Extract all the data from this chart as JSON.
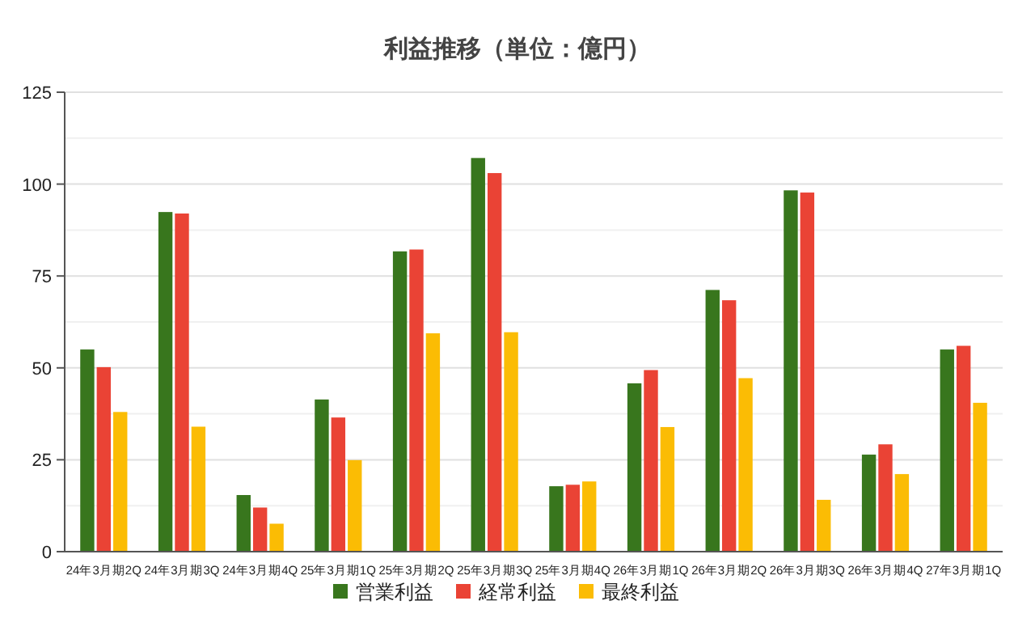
{
  "chart_data": {
    "type": "bar",
    "title": "利益推移（単位：億円）",
    "categories": [
      "24年3月期2Q",
      "24年3月期3Q",
      "24年3月期4Q",
      "25年3月期1Q",
      "25年3月期2Q",
      "25年3月期3Q",
      "25年3月期4Q",
      "26年3月期1Q",
      "26年3月期2Q",
      "26年3月期3Q",
      "26年3月期4Q",
      "27年3月期1Q"
    ],
    "series": [
      {
        "name": "営業利益",
        "color": "#38761d",
        "values": [
          55.0,
          92.4,
          15.4,
          41.4,
          81.7,
          107.1,
          17.8,
          45.8,
          71.2,
          98.3,
          26.4,
          55.0
        ]
      },
      {
        "name": "経常利益",
        "color": "#ea4335",
        "values": [
          50.2,
          92.0,
          12.0,
          36.5,
          82.2,
          103.0,
          18.2,
          49.4,
          68.4,
          97.7,
          29.2,
          56.0
        ]
      },
      {
        "name": "最終利益",
        "color": "#fbbc04",
        "values": [
          38.0,
          34.0,
          7.6,
          24.9,
          59.4,
          59.7,
          19.1,
          33.9,
          47.2,
          14.1,
          21.1,
          40.5
        ]
      }
    ],
    "ylim": [
      0,
      125
    ],
    "yticks": [
      0,
      {
        "value": 12.5,
        "label": null
      },
      25,
      {
        "value": 37.5,
        "label": null
      },
      50,
      {
        "value": 62.5,
        "label": null
      },
      75,
      {
        "value": 87.5,
        "label": null
      },
      100,
      {
        "value": 112.5,
        "label": null
      },
      125
    ],
    "grid": "y",
    "legend": "bottom"
  }
}
